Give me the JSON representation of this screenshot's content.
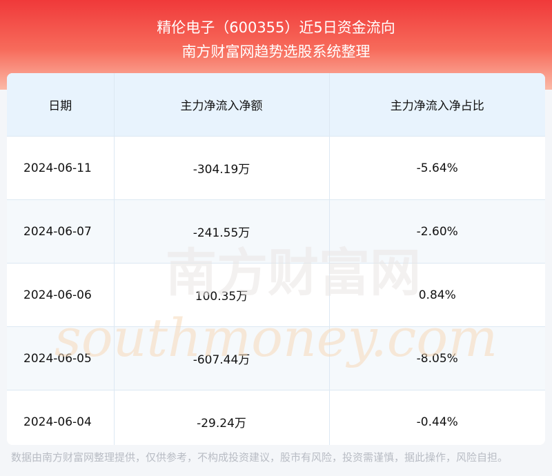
{
  "header": {
    "title": "精伦电子（600355）近5日资金流向",
    "subtitle": "南方财富网趋势选股系统整理"
  },
  "table": {
    "columns": [
      "日期",
      "主力净流入净额",
      "主力净流入净占比"
    ],
    "rows": [
      [
        "2024-06-11",
        "-304.19万",
        "-5.64%"
      ],
      [
        "2024-06-07",
        "-241.55万",
        "-2.60%"
      ],
      [
        "2024-06-06",
        "100.35万",
        "0.84%"
      ],
      [
        "2024-06-05",
        "-607.44万",
        "-8.05%"
      ],
      [
        "2024-06-04",
        "-29.24万",
        "-0.44%"
      ]
    ]
  },
  "watermark": {
    "name": "南方财富网",
    "site": "southmoney.com"
  },
  "footer": "数据由南方财富网整理提供，仅供参考，不构成投资建议，股市有风险，投资需谨慎，据此操作，风险自担。"
}
